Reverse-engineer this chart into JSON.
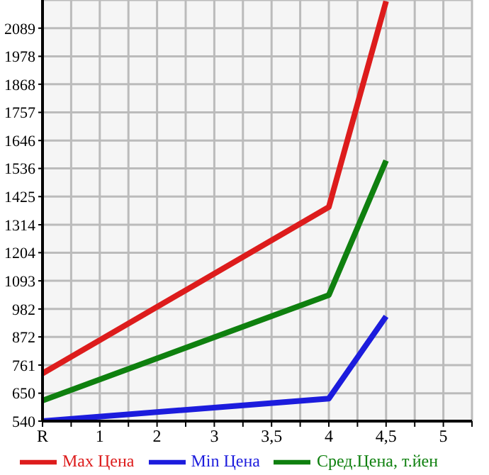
{
  "chart_data": {
    "type": "line",
    "categories": [
      "R",
      "1",
      "2",
      "3",
      "3,5",
      "4",
      "4,5",
      "5"
    ],
    "series": [
      {
        "name": "Max Цена",
        "color": "#dd1c1c",
        "values": [
          728,
          null,
          null,
          null,
          null,
          1384,
          2195,
          null
        ]
      },
      {
        "name": "Min Цена",
        "color": "#1c1cdd",
        "values": [
          540,
          null,
          null,
          null,
          null,
          629,
          953,
          null
        ]
      },
      {
        "name": "Сред.Цена, т.йен",
        "color": "#0f800f",
        "values": [
          621,
          null,
          null,
          null,
          null,
          1037,
          1567,
          null
        ]
      }
    ],
    "ylim": [
      540,
      2200
    ],
    "yticks": [
      540,
      650,
      761,
      872,
      982,
      1093,
      1204,
      1314,
      1425,
      1536,
      1646,
      1757,
      1868,
      1978,
      2089
    ],
    "grid": true,
    "legend": "bottom",
    "marker": "none",
    "line_style": "solid"
  }
}
